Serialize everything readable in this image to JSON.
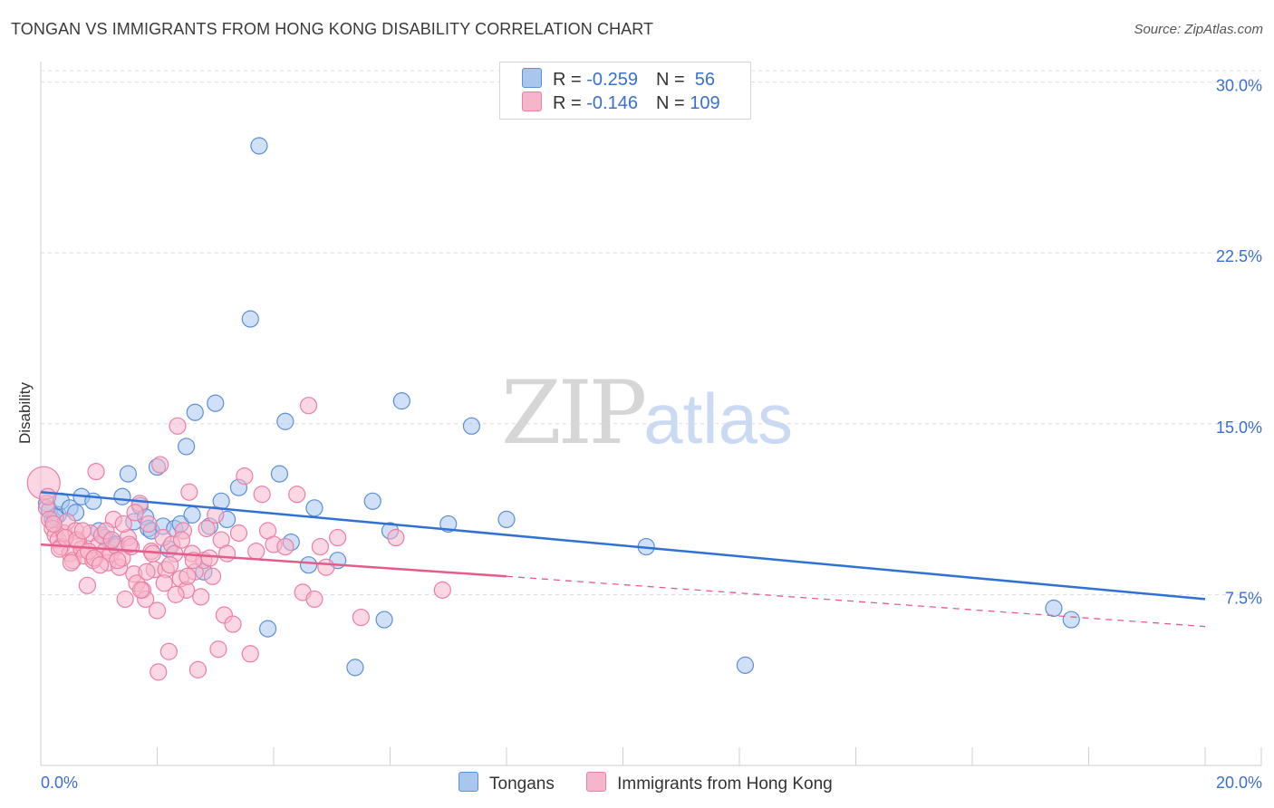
{
  "header": {
    "title": "TONGAN VS IMMIGRANTS FROM HONG KONG DISABILITY CORRELATION CHART",
    "source": "Source: ZipAtlas.com"
  },
  "legend": {
    "rows": [
      {
        "r_label": "R = ",
        "r_value": "-0.259",
        "n_label": "N = ",
        "n_value": " 56",
        "color": "#a9c6ef"
      },
      {
        "r_label": "R = ",
        "r_value": "-0.146",
        "n_label": "N = ",
        "n_value": "109",
        "color": "#f5b6cb"
      }
    ]
  },
  "bottom_legend": [
    {
      "label": "Tongans",
      "color": "#a9c6ef"
    },
    {
      "label": "Immigrants from Hong Kong",
      "color": "#f5b6cb"
    }
  ],
  "watermark": {
    "zip": "ZIP",
    "atlas": "atlas"
  },
  "chart_data": {
    "type": "scatter",
    "xlabel": "",
    "ylabel": "Disability",
    "xlim": [
      0,
      20
    ],
    "ylim": [
      0,
      30.5
    ],
    "x_ticks": [
      "0.0%",
      "20.0%"
    ],
    "y_ticks": [
      {
        "value": 7.5,
        "label": "7.5%"
      },
      {
        "value": 15.0,
        "label": "15.0%"
      },
      {
        "value": 22.5,
        "label": "22.5%"
      },
      {
        "value": 30.0,
        "label": "30.0%"
      }
    ],
    "grid": "horizontal dashed",
    "series": [
      {
        "name": "Tongans",
        "color": "#5b8fd9",
        "fill": "#a9c6ef",
        "trend": {
          "x": [
            0,
            20
          ],
          "y": [
            12.0,
            7.3
          ],
          "color": "#2f72d4"
        },
        "points": [
          [
            0.1,
            11.5
          ],
          [
            0.15,
            11.2
          ],
          [
            0.2,
            10.8
          ],
          [
            0.3,
            11.0
          ],
          [
            0.35,
            11.6
          ],
          [
            0.5,
            11.3
          ],
          [
            0.6,
            11.1
          ],
          [
            0.7,
            11.8
          ],
          [
            0.9,
            11.6
          ],
          [
            1.0,
            10.3
          ],
          [
            1.1,
            10.0
          ],
          [
            1.2,
            9.8
          ],
          [
            1.3,
            9.7
          ],
          [
            1.4,
            11.8
          ],
          [
            1.5,
            12.8
          ],
          [
            1.6,
            10.7
          ],
          [
            1.7,
            11.4
          ],
          [
            1.8,
            10.9
          ],
          [
            1.85,
            10.4
          ],
          [
            1.9,
            10.3
          ],
          [
            2.0,
            13.1
          ],
          [
            2.1,
            10.5
          ],
          [
            2.2,
            9.5
          ],
          [
            2.3,
            10.4
          ],
          [
            2.4,
            10.6
          ],
          [
            2.5,
            14.0
          ],
          [
            2.6,
            11.0
          ],
          [
            2.65,
            15.5
          ],
          [
            2.8,
            8.5
          ],
          [
            2.9,
            10.5
          ],
          [
            3.0,
            15.9
          ],
          [
            3.1,
            11.6
          ],
          [
            3.2,
            10.8
          ],
          [
            3.4,
            12.2
          ],
          [
            3.6,
            19.6
          ],
          [
            3.75,
            27.2
          ],
          [
            3.9,
            6.0
          ],
          [
            4.1,
            12.8
          ],
          [
            4.2,
            15.1
          ],
          [
            4.3,
            9.8
          ],
          [
            4.6,
            8.8
          ],
          [
            4.7,
            11.3
          ],
          [
            5.1,
            9.0
          ],
          [
            5.4,
            4.3
          ],
          [
            5.7,
            11.6
          ],
          [
            5.9,
            6.4
          ],
          [
            6.0,
            10.3
          ],
          [
            6.2,
            16.0
          ],
          [
            7.0,
            10.6
          ],
          [
            7.4,
            14.9
          ],
          [
            8.0,
            10.8
          ],
          [
            10.4,
            9.6
          ],
          [
            12.1,
            4.4
          ],
          [
            17.4,
            6.9
          ],
          [
            17.7,
            6.4
          ],
          [
            0.25,
            10.9
          ]
        ]
      },
      {
        "name": "Immigrants from Hong Kong",
        "color": "#ec7fa3",
        "fill": "#f5b6cb",
        "trend": {
          "x": [
            0,
            8.0
          ],
          "y": [
            9.7,
            8.3
          ],
          "color": "#e55b8a"
        },
        "trend_extension": {
          "x": [
            8.0,
            20
          ],
          "y": [
            8.3,
            6.1
          ]
        },
        "points": [
          [
            0.05,
            12.4
          ],
          [
            0.1,
            11.3
          ],
          [
            0.15,
            10.8
          ],
          [
            0.2,
            10.4
          ],
          [
            0.25,
            10.1
          ],
          [
            0.3,
            9.9
          ],
          [
            0.35,
            9.6
          ],
          [
            0.4,
            10.2
          ],
          [
            0.45,
            10.7
          ],
          [
            0.5,
            9.3
          ],
          [
            0.55,
            9.0
          ],
          [
            0.6,
            10.3
          ],
          [
            0.65,
            9.8
          ],
          [
            0.7,
            9.5
          ],
          [
            0.75,
            9.2
          ],
          [
            0.8,
            7.9
          ],
          [
            0.85,
            10.2
          ],
          [
            0.9,
            9.0
          ],
          [
            0.95,
            12.9
          ],
          [
            1.0,
            9.7
          ],
          [
            1.05,
            10.1
          ],
          [
            1.1,
            9.4
          ],
          [
            1.15,
            8.9
          ],
          [
            1.2,
            9.3
          ],
          [
            1.25,
            10.8
          ],
          [
            1.3,
            9.6
          ],
          [
            1.35,
            8.7
          ],
          [
            1.4,
            9.1
          ],
          [
            1.45,
            7.3
          ],
          [
            1.5,
            10.0
          ],
          [
            1.55,
            9.6
          ],
          [
            1.6,
            8.4
          ],
          [
            1.65,
            8.0
          ],
          [
            1.7,
            11.5
          ],
          [
            1.75,
            7.7
          ],
          [
            1.8,
            7.3
          ],
          [
            1.85,
            10.6
          ],
          [
            1.9,
            9.4
          ],
          [
            1.95,
            8.6
          ],
          [
            2.0,
            6.8
          ],
          [
            2.05,
            13.2
          ],
          [
            2.1,
            10.0
          ],
          [
            2.15,
            8.6
          ],
          [
            2.2,
            5.0
          ],
          [
            2.25,
            9.7
          ],
          [
            2.3,
            9.3
          ],
          [
            2.35,
            14.9
          ],
          [
            2.4,
            8.2
          ],
          [
            2.45,
            10.3
          ],
          [
            2.5,
            7.7
          ],
          [
            2.55,
            12.0
          ],
          [
            2.6,
            9.3
          ],
          [
            2.65,
            8.5
          ],
          [
            2.7,
            4.2
          ],
          [
            2.75,
            7.4
          ],
          [
            2.8,
            9.0
          ],
          [
            2.85,
            10.4
          ],
          [
            2.9,
            9.1
          ],
          [
            2.95,
            8.3
          ],
          [
            3.0,
            11.0
          ],
          [
            3.05,
            5.1
          ],
          [
            3.1,
            9.9
          ],
          [
            3.15,
            6.6
          ],
          [
            3.2,
            9.3
          ],
          [
            3.3,
            6.2
          ],
          [
            3.4,
            10.2
          ],
          [
            3.5,
            12.7
          ],
          [
            3.6,
            4.9
          ],
          [
            3.7,
            9.4
          ],
          [
            3.8,
            11.9
          ],
          [
            3.9,
            10.3
          ],
          [
            4.0,
            9.7
          ],
          [
            4.2,
            9.6
          ],
          [
            4.4,
            11.9
          ],
          [
            4.5,
            7.6
          ],
          [
            4.6,
            15.8
          ],
          [
            4.7,
            7.3
          ],
          [
            4.8,
            9.6
          ],
          [
            4.9,
            8.7
          ],
          [
            5.1,
            10.0
          ],
          [
            5.5,
            6.5
          ],
          [
            6.1,
            10.0
          ],
          [
            6.9,
            7.7
          ],
          [
            0.12,
            11.8
          ],
          [
            0.22,
            10.6
          ],
          [
            0.32,
            9.5
          ],
          [
            0.42,
            10.0
          ],
          [
            0.52,
            8.9
          ],
          [
            0.62,
            9.9
          ],
          [
            0.72,
            10.3
          ],
          [
            0.82,
            9.4
          ],
          [
            0.92,
            9.1
          ],
          [
            1.02,
            8.8
          ],
          [
            1.12,
            10.3
          ],
          [
            1.22,
            9.9
          ],
          [
            1.32,
            9.0
          ],
          [
            1.42,
            10.6
          ],
          [
            1.52,
            9.7
          ],
          [
            1.62,
            11.1
          ],
          [
            1.72,
            7.7
          ],
          [
            1.82,
            8.5
          ],
          [
            1.92,
            9.3
          ],
          [
            2.02,
            4.1
          ],
          [
            2.12,
            8.0
          ],
          [
            2.22,
            8.8
          ],
          [
            2.32,
            7.5
          ],
          [
            2.42,
            9.9
          ],
          [
            2.52,
            8.3
          ],
          [
            2.62,
            9.0
          ]
        ]
      }
    ]
  }
}
